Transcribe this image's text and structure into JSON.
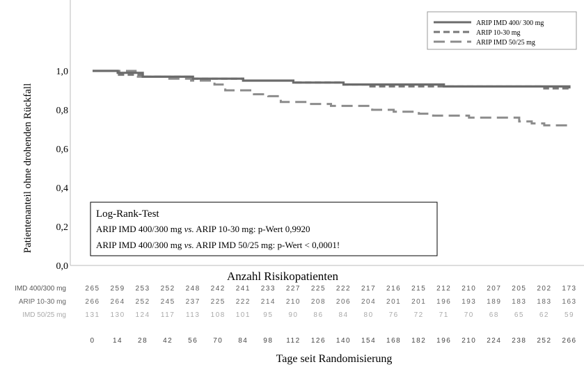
{
  "chart_data": {
    "type": "line",
    "title": "",
    "ylabel": "Patientenanteil ohne drohenden Rückfall",
    "xlabel": "Tage seit Randomisierung",
    "ylim": [
      0.0,
      1.0
    ],
    "yticks": [
      "0,0",
      "0,2",
      "0,4",
      "0,6",
      "0,8",
      "1,0"
    ],
    "ytick_values": [
      0.0,
      0.2,
      0.4,
      0.6,
      0.8,
      1.0
    ],
    "xlim": [
      0,
      266
    ],
    "xticks": [
      0,
      14,
      28,
      42,
      56,
      70,
      84,
      98,
      112,
      126,
      140,
      154,
      168,
      182,
      196,
      210,
      224,
      238,
      252,
      266
    ],
    "legend_position": "top-right",
    "series": [
      {
        "name": "ARIP IMD 400/ 300 mg",
        "color": "#6b6b6b",
        "dash": "solid",
        "points": [
          [
            0,
            1.0
          ],
          [
            14,
            0.99
          ],
          [
            28,
            0.97
          ],
          [
            42,
            0.97
          ],
          [
            56,
            0.96
          ],
          [
            70,
            0.96
          ],
          [
            84,
            0.95
          ],
          [
            98,
            0.95
          ],
          [
            112,
            0.94
          ],
          [
            126,
            0.94
          ],
          [
            140,
            0.93
          ],
          [
            154,
            0.93
          ],
          [
            168,
            0.93
          ],
          [
            182,
            0.93
          ],
          [
            196,
            0.92
          ],
          [
            210,
            0.92
          ],
          [
            224,
            0.92
          ],
          [
            238,
            0.92
          ],
          [
            252,
            0.92
          ],
          [
            266,
            0.91
          ]
        ]
      },
      {
        "name": "ARIP 10-30 mg",
        "color": "#777777",
        "dash": "short",
        "points": [
          [
            0,
            1.0
          ],
          [
            14,
            0.98
          ],
          [
            28,
            0.97
          ],
          [
            42,
            0.97
          ],
          [
            56,
            0.96
          ],
          [
            70,
            0.96
          ],
          [
            84,
            0.95
          ],
          [
            98,
            0.95
          ],
          [
            112,
            0.94
          ],
          [
            126,
            0.94
          ],
          [
            140,
            0.93
          ],
          [
            154,
            0.92
          ],
          [
            168,
            0.92
          ],
          [
            182,
            0.92
          ],
          [
            196,
            0.92
          ],
          [
            210,
            0.92
          ],
          [
            224,
            0.92
          ],
          [
            238,
            0.92
          ],
          [
            252,
            0.91
          ],
          [
            266,
            0.91
          ]
        ]
      },
      {
        "name": "ARIP IMD 50/25 mg",
        "color": "#8c8c8c",
        "dash": "long",
        "points": [
          [
            0,
            1.0
          ],
          [
            14,
            1.0
          ],
          [
            20,
            1.0
          ],
          [
            24,
            0.97
          ],
          [
            40,
            0.96
          ],
          [
            55,
            0.95
          ],
          [
            68,
            0.93
          ],
          [
            74,
            0.9
          ],
          [
            84,
            0.9
          ],
          [
            90,
            0.88
          ],
          [
            98,
            0.87
          ],
          [
            105,
            0.84
          ],
          [
            120,
            0.83
          ],
          [
            133,
            0.82
          ],
          [
            153,
            0.82
          ],
          [
            156,
            0.8
          ],
          [
            168,
            0.79
          ],
          [
            182,
            0.78
          ],
          [
            190,
            0.77
          ],
          [
            210,
            0.76
          ],
          [
            214,
            0.76
          ],
          [
            224,
            0.76
          ],
          [
            238,
            0.74
          ],
          [
            245,
            0.73
          ],
          [
            252,
            0.72
          ],
          [
            266,
            0.72
          ]
        ]
      }
    ],
    "annotation": {
      "lines": [
        "Log-Rank-Test",
        "ARIP IMD 400/300 mg vs. ARIP 10-30 mg: p-Wert 0,9920",
        "ARIP IMD 400/300 mg vs. ARIP IMD 50/25 mg: p-Wert < 0,0001!"
      ]
    },
    "risk_table": {
      "title": "Anzahl Risikopatienten",
      "rows": [
        {
          "label": "IMD 400/300 mg",
          "color": "#555555",
          "values": [
            265,
            259,
            253,
            252,
            248,
            242,
            241,
            233,
            227,
            225,
            222,
            217,
            216,
            215,
            212,
            210,
            207,
            205,
            202,
            173
          ]
        },
        {
          "label": "ARIP 10-30 mg",
          "color": "#666666",
          "values": [
            266,
            264,
            252,
            245,
            237,
            225,
            222,
            214,
            210,
            208,
            206,
            204,
            201,
            201,
            196,
            193,
            189,
            183,
            183,
            163
          ]
        },
        {
          "label": "IMD 50/25 mg",
          "color": "#aaaaaa",
          "values": [
            131,
            130,
            124,
            117,
            113,
            108,
            101,
            95,
            90,
            86,
            84,
            80,
            76,
            72,
            71,
            70,
            68,
            65,
            62,
            59
          ]
        }
      ]
    }
  }
}
